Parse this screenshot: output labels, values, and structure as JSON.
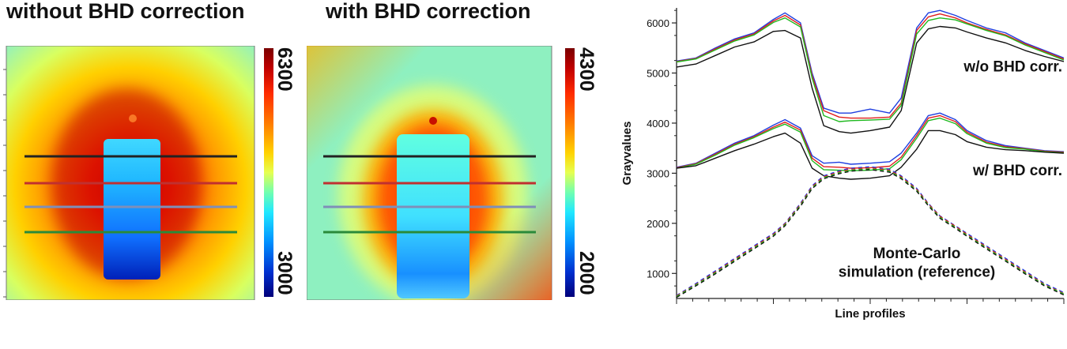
{
  "titles": {
    "left": "without BHD correction",
    "middle": "with BHD correction"
  },
  "colorbars": {
    "left": {
      "max": "6300",
      "min": "3000"
    },
    "right": {
      "max": "4300",
      "min": "2000"
    }
  },
  "profile_line_colors": [
    "#222222",
    "#c03030",
    "#7f8fb8",
    "#2a8a3a"
  ],
  "series_colors": {
    "blue": "#1f3fe0",
    "red": "#e01f1f",
    "green": "#1fb81f",
    "black": "#111111"
  },
  "chart_data": {
    "type": "line",
    "title": "",
    "xlabel": "Line profiles",
    "ylabel": "Grayvalues",
    "ylim": [
      500,
      6300
    ],
    "yticks": [
      1000,
      2000,
      3000,
      4000,
      5000,
      6000
    ],
    "x": [
      0,
      5,
      10,
      15,
      20,
      25,
      28,
      32,
      35,
      38,
      42,
      45,
      50,
      55,
      58,
      62,
      65,
      68,
      72,
      75,
      80,
      85,
      90,
      95,
      100
    ],
    "annotations": [
      "w/o BHD corr.",
      "w/ BHD corr.",
      "Monte-Carlo",
      "simulation (reference)"
    ],
    "series": [
      {
        "group": "w/o BHD corr.",
        "color": "blue",
        "values": [
          5240,
          5300,
          5500,
          5680,
          5800,
          6070,
          6200,
          6000,
          5000,
          4300,
          4200,
          4200,
          4280,
          4200,
          4500,
          5900,
          6200,
          6250,
          6150,
          6050,
          5900,
          5800,
          5600,
          5450,
          5300
        ]
      },
      {
        "group": "w/o BHD corr.",
        "color": "red",
        "values": [
          5230,
          5290,
          5480,
          5660,
          5780,
          6040,
          6150,
          5960,
          4950,
          4250,
          4120,
          4100,
          4100,
          4120,
          4400,
          5850,
          6120,
          6180,
          6100,
          6000,
          5870,
          5760,
          5580,
          5430,
          5280
        ]
      },
      {
        "group": "w/o BHD corr.",
        "color": "green",
        "values": [
          5220,
          5280,
          5460,
          5640,
          5760,
          6010,
          6100,
          5920,
          4900,
          4150,
          4030,
          4050,
          4060,
          4080,
          4350,
          5780,
          6050,
          6100,
          6060,
          5980,
          5850,
          5740,
          5560,
          5410,
          5260
        ]
      },
      {
        "group": "w/o BHD corr.",
        "color": "black",
        "values": [
          5120,
          5180,
          5350,
          5520,
          5620,
          5830,
          5850,
          5700,
          4700,
          3950,
          3830,
          3800,
          3850,
          3920,
          4250,
          5600,
          5880,
          5930,
          5900,
          5820,
          5700,
          5600,
          5450,
          5330,
          5230
        ]
      },
      {
        "group": "w/ BHD corr.",
        "color": "blue",
        "values": [
          3120,
          3200,
          3400,
          3600,
          3750,
          3960,
          4070,
          3900,
          3350,
          3200,
          3220,
          3180,
          3200,
          3230,
          3400,
          3800,
          4150,
          4200,
          4070,
          3850,
          3650,
          3550,
          3500,
          3450,
          3430
        ]
      },
      {
        "group": "w/ BHD corr.",
        "color": "red",
        "values": [
          3110,
          3190,
          3380,
          3580,
          3730,
          3920,
          4020,
          3860,
          3300,
          3130,
          3120,
          3100,
          3110,
          3140,
          3320,
          3750,
          4100,
          4150,
          4030,
          3820,
          3620,
          3530,
          3490,
          3440,
          3420
        ]
      },
      {
        "group": "w/ BHD corr.",
        "color": "green",
        "values": [
          3100,
          3180,
          3360,
          3560,
          3710,
          3890,
          3980,
          3820,
          3250,
          3070,
          3060,
          3050,
          3060,
          3090,
          3270,
          3700,
          4050,
          4100,
          3990,
          3790,
          3600,
          3510,
          3480,
          3430,
          3410
        ]
      },
      {
        "group": "w/ BHD corr.",
        "color": "black",
        "values": [
          3100,
          3150,
          3300,
          3450,
          3580,
          3730,
          3800,
          3600,
          3100,
          2950,
          2900,
          2880,
          2900,
          2950,
          3120,
          3480,
          3850,
          3850,
          3770,
          3630,
          3520,
          3470,
          3450,
          3420,
          3400
        ]
      },
      {
        "group": "Monte-Carlo simulation (reference)",
        "color": "blue",
        "dashed": true,
        "values": [
          560,
          800,
          1050,
          1300,
          1550,
          1800,
          2000,
          2400,
          2750,
          2950,
          3050,
          3100,
          3130,
          3080,
          2950,
          2700,
          2400,
          2150,
          1950,
          1800,
          1550,
          1300,
          1050,
          800,
          620
        ]
      },
      {
        "group": "Monte-Carlo simulation (reference)",
        "color": "red",
        "dashed": true,
        "values": [
          550,
          780,
          1030,
          1280,
          1530,
          1780,
          1990,
          2380,
          2730,
          2930,
          3030,
          3080,
          3110,
          3060,
          2930,
          2680,
          2390,
          2140,
          1940,
          1780,
          1530,
          1280,
          1030,
          780,
          600
        ]
      },
      {
        "group": "Monte-Carlo simulation (reference)",
        "color": "green",
        "dashed": true,
        "values": [
          540,
          770,
          1010,
          1260,
          1510,
          1760,
          1970,
          2360,
          2710,
          2910,
          3010,
          3060,
          3090,
          3040,
          2910,
          2660,
          2370,
          2120,
          1920,
          1760,
          1510,
          1260,
          1010,
          770,
          590
        ]
      },
      {
        "group": "Monte-Carlo simulation (reference)",
        "color": "black",
        "dashed": true,
        "values": [
          520,
          750,
          990,
          1240,
          1490,
          1740,
          1950,
          2340,
          2690,
          2890,
          2990,
          3040,
          3070,
          3020,
          2890,
          2640,
          2350,
          2100,
          1900,
          1740,
          1490,
          1240,
          990,
          750,
          570
        ]
      }
    ]
  }
}
